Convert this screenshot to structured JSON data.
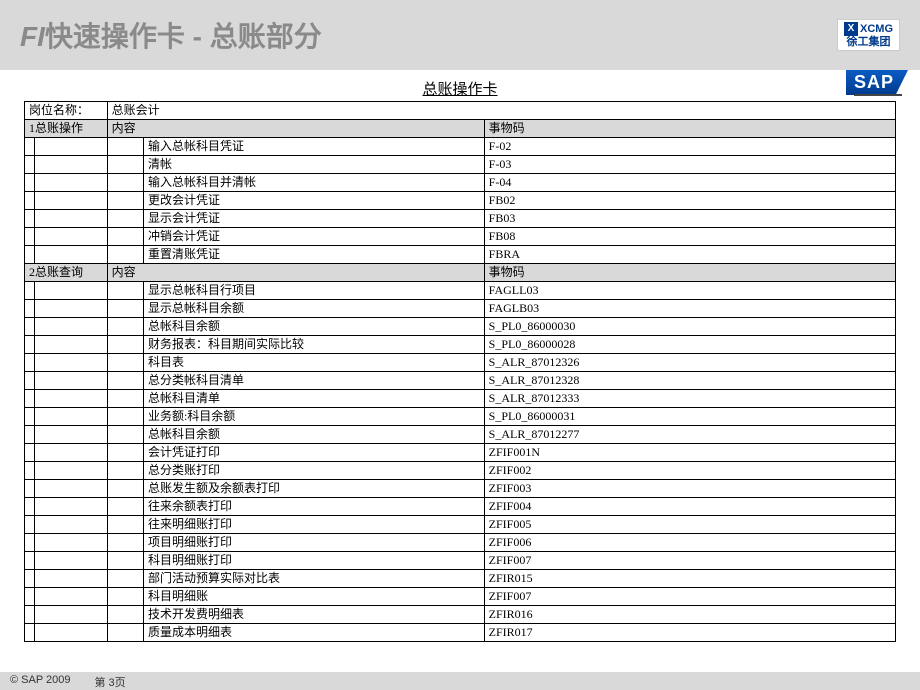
{
  "header": {
    "title_first": "FI",
    "title_rest": "快速操作卡 - 总账部分",
    "xcmg_top": "XCMG",
    "xcmg_bottom": "徐工集团",
    "sap": "SAP"
  },
  "table": {
    "title": "总账操作卡",
    "job_label": "岗位名称：",
    "job_value": "总账会计",
    "col_content": "内容",
    "col_code": "事物码",
    "sections": [
      {
        "num": "1",
        "name": "总账操作",
        "rows": [
          {
            "content": "输入总帐科目凭证",
            "code": "F-02"
          },
          {
            "content": "清帐",
            "code": "F-03"
          },
          {
            "content": "输入总帐科目并清帐",
            "code": "F-04"
          },
          {
            "content": "更改会计凭证",
            "code": "FB02"
          },
          {
            "content": "显示会计凭证",
            "code": "FB03"
          },
          {
            "content": "冲销会计凭证",
            "code": "FB08"
          },
          {
            "content": "重置清账凭证",
            "code": "FBRA"
          }
        ]
      },
      {
        "num": "2",
        "name": "总账查询",
        "rows": [
          {
            "content": "显示总帐科目行项目",
            "code": "FAGLL03"
          },
          {
            "content": "显示总帐科目余额",
            "code": "FAGLB03"
          },
          {
            "content": "总帐科目余额",
            "code": "S_PL0_86000030"
          },
          {
            "content": "财务报表：科目期间实际比较",
            "code": "S_PL0_86000028"
          },
          {
            "content": "科目表",
            "code": "S_ALR_87012326"
          },
          {
            "content": "总分类帐科目清单",
            "code": "S_ALR_87012328"
          },
          {
            "content": "总帐科目清单",
            "code": "S_ALR_87012333"
          },
          {
            "content": "业务额:科目余额",
            "code": "S_PL0_86000031"
          },
          {
            "content": "总帐科目余额",
            "code": "S_ALR_87012277"
          },
          {
            "content": "会计凭证打印",
            "code": "ZFIF001N"
          },
          {
            "content": "总分类账打印",
            "code": "ZFIF002"
          },
          {
            "content": "总账发生额及余额表打印",
            "code": "ZFIF003"
          },
          {
            "content": "往来余额表打印",
            "code": "ZFIF004"
          },
          {
            "content": "往来明细账打印",
            "code": "ZFIF005"
          },
          {
            "content": "项目明细账打印",
            "code": "ZFIF006"
          },
          {
            "content": "科目明细账打印",
            "code": "ZFIF007"
          },
          {
            "content": "部门活动预算实际对比表",
            "code": "ZFIR015"
          },
          {
            "content": "科目明细账",
            "code": "ZFIF007"
          },
          {
            "content": "技术开发费明细表",
            "code": "ZFIR016"
          },
          {
            "content": "质量成本明细表",
            "code": "ZFIR017"
          }
        ]
      }
    ]
  },
  "footer": {
    "copyright": "© SAP 2009",
    "page": "第 3页"
  },
  "style": {
    "header_bg": "#d9d9d9",
    "title_color": "#8a8a8a",
    "border_color": "#000000",
    "body_bg": "#ffffff",
    "font_size_title": 28,
    "font_size_table": 12
  }
}
